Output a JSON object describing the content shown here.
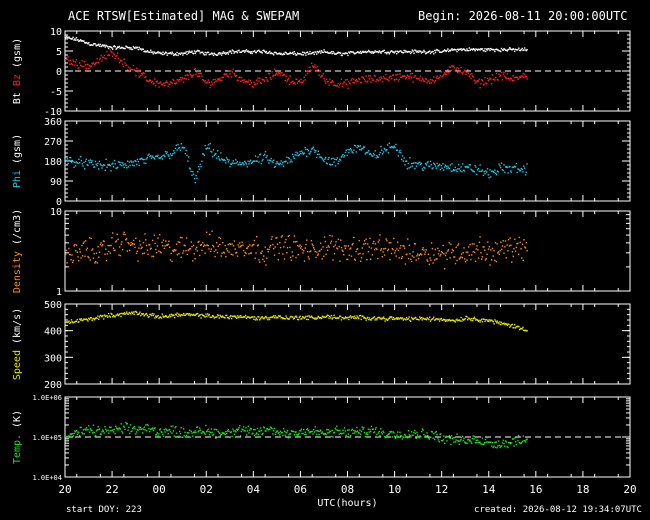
{
  "header": {
    "title": "ACE RTSW[Estimated] MAG & SWEPAM",
    "begin_label": "Begin: 2026-08-11 20:00:00UTC"
  },
  "footer": {
    "start_doy": "start DOY: 223",
    "created": "created: 2026-08-12 19:34:07UTC"
  },
  "colors": {
    "bt": "#ffffff",
    "bz": "#ff2020",
    "phi": "#1ec8e6",
    "density": "#ff8c1a",
    "speed": "#e6e600",
    "temp": "#20e020",
    "frame": "#ffffff"
  },
  "chart_data": [
    {
      "type": "scatter",
      "panel": "mag",
      "ylabel_parts": [
        "Bt",
        "Bz",
        "(gsm)"
      ],
      "yticks": [
        "10",
        "5",
        "0",
        "-5",
        "-10"
      ],
      "ylim": [
        -10,
        10
      ],
      "zero_line": 0,
      "series": [
        {
          "name": "Bt",
          "x": [
            0,
            0.5,
            1,
            1.5,
            2,
            2.5,
            3,
            3.5,
            4,
            4.5,
            5,
            5.5,
            6,
            6.5,
            7,
            7.5,
            8,
            8.5,
            9,
            9.5,
            10,
            10.5,
            11,
            11.5,
            12,
            12.5,
            13,
            13.5,
            14,
            14.5,
            15,
            15.5,
            16,
            16.5,
            17,
            17.5,
            18,
            18.5,
            19,
            19.5
          ],
          "values": [
            8.5,
            8,
            7,
            6.5,
            6,
            6,
            6,
            5,
            4.5,
            4.5,
            4.5,
            5,
            4.5,
            4.5,
            5,
            5,
            5,
            5,
            4.5,
            4.5,
            4.5,
            4.5,
            5,
            4.5,
            4.5,
            5,
            5,
            5,
            5,
            5,
            5,
            5,
            5,
            5.5,
            5.5,
            5.5,
            5.5,
            5.5,
            5.5,
            5.5
          ]
        },
        {
          "name": "Bz",
          "x": [
            0,
            0.5,
            1,
            1.5,
            2,
            2.5,
            3,
            3.5,
            4,
            4.5,
            5,
            5.5,
            6,
            6.5,
            7,
            7.5,
            8,
            8.5,
            9,
            9.5,
            10,
            10.5,
            11,
            11.5,
            12,
            12.5,
            13,
            13.5,
            14,
            14.5,
            15,
            15.5,
            16,
            16.5,
            17,
            17.5,
            18,
            18.5,
            19,
            19.5
          ],
          "values": [
            3,
            2,
            1.5,
            3,
            5,
            2,
            0,
            -2,
            -3,
            -3,
            -2,
            0,
            -3,
            -2,
            0,
            -2,
            -3,
            -2,
            0,
            -2,
            -3,
            2,
            -2,
            -3,
            -3,
            -2,
            -2,
            -1.5,
            -1.5,
            -1,
            -2,
            -2,
            -1,
            1,
            0,
            -3,
            -2,
            -1,
            -2,
            -1
          ]
        }
      ]
    },
    {
      "type": "scatter",
      "panel": "phi",
      "ylabel_parts": [
        "Phi",
        "(gsm)"
      ],
      "yticks": [
        "360",
        "270",
        "180",
        "90",
        "0"
      ],
      "ylim": [
        0,
        360
      ],
      "series": [
        {
          "name": "Phi",
          "x": [
            0,
            0.5,
            1,
            1.5,
            2,
            2.5,
            3,
            3.5,
            4,
            4.5,
            5,
            5.5,
            6,
            6.5,
            7,
            7.5,
            8,
            8.5,
            9,
            9.5,
            10,
            10.5,
            11,
            11.5,
            12,
            12.5,
            13,
            13.5,
            14,
            14.5,
            15,
            15.5,
            16,
            16.5,
            17,
            17.5,
            18,
            18.5,
            19,
            19.5
          ],
          "values": [
            185,
            180,
            168,
            165,
            160,
            165,
            175,
            190,
            200,
            220,
            250,
            90,
            250,
            200,
            170,
            175,
            180,
            200,
            160,
            185,
            220,
            240,
            190,
            170,
            230,
            250,
            200,
            230,
            250,
            175,
            165,
            160,
            160,
            155,
            150,
            145,
            125,
            150,
            150,
            145
          ]
        }
      ]
    },
    {
      "type": "scatter",
      "panel": "density",
      "ylabel_parts": [
        "Density",
        "(/cm3)"
      ],
      "yticks": [
        "10",
        "1"
      ],
      "ylim": [
        1,
        10
      ],
      "log_scale": true,
      "series": [
        {
          "name": "Density",
          "x": [
            0,
            0.5,
            1,
            1.5,
            2,
            2.5,
            3,
            3.5,
            4,
            4.5,
            5,
            5.5,
            6,
            6.5,
            7,
            7.5,
            8,
            8.5,
            9,
            9.5,
            10,
            10.5,
            11,
            11.5,
            12,
            12.5,
            13,
            13.5,
            14,
            14.5,
            15,
            15.5,
            16,
            16.5,
            17,
            17.5,
            18,
            18.5,
            19,
            19.5
          ],
          "values": [
            2.8,
            3.0,
            3.3,
            3.0,
            3.8,
            4.2,
            3.6,
            3.5,
            3.8,
            3.2,
            3.4,
            3.6,
            3.9,
            3.7,
            3.3,
            3.9,
            3.5,
            3.2,
            3.8,
            3.6,
            3.3,
            3.1,
            3.8,
            3.4,
            3.5,
            3.4,
            3.6,
            3.3,
            3.5,
            3.0,
            3.2,
            3.1,
            2.9,
            3.2,
            3.0,
            3.4,
            3.1,
            3.3,
            3.5,
            3.6
          ]
        }
      ]
    },
    {
      "type": "scatter",
      "panel": "speed",
      "ylabel_parts": [
        "Speed",
        "(km/s)"
      ],
      "yticks": [
        "500",
        "400",
        "300",
        "200"
      ],
      "ylim": [
        200,
        500
      ],
      "series": [
        {
          "name": "Speed",
          "x": [
            0,
            0.5,
            1,
            1.5,
            2,
            2.5,
            3,
            3.5,
            4,
            4.5,
            5,
            5.5,
            6,
            6.5,
            7,
            7.5,
            8,
            8.5,
            9,
            9.5,
            10,
            10.5,
            11,
            11.5,
            12,
            12.5,
            13,
            13.5,
            14,
            14.5,
            15,
            15.5,
            16,
            16.5,
            17,
            17.5,
            18,
            18.5,
            19,
            19.5
          ],
          "values": [
            430,
            440,
            445,
            455,
            460,
            465,
            470,
            460,
            455,
            460,
            462,
            460,
            458,
            455,
            455,
            455,
            450,
            450,
            455,
            450,
            452,
            450,
            455,
            452,
            450,
            452,
            450,
            448,
            448,
            446,
            448,
            446,
            445,
            440,
            450,
            445,
            440,
            430,
            420,
            408
          ]
        }
      ]
    },
    {
      "type": "scatter",
      "panel": "temp",
      "ylabel_parts": [
        "Temp.",
        "(K)"
      ],
      "yticks": [
        "1.0E+06",
        "1.0E+05",
        "1.0E+04"
      ],
      "ylim": [
        10000,
        1000000
      ],
      "log_scale": true,
      "reference_line": 100000,
      "series": [
        {
          "name": "Temp.",
          "x": [
            0,
            0.5,
            1,
            1.5,
            2,
            2.5,
            3,
            3.5,
            4,
            4.5,
            5,
            5.5,
            6,
            6.5,
            7,
            7.5,
            8,
            8.5,
            9,
            9.5,
            10,
            10.5,
            11,
            11.5,
            12,
            12.5,
            13,
            13.5,
            14,
            14.5,
            15,
            15.5,
            16,
            16.5,
            17,
            17.5,
            18,
            18.5,
            19,
            19.5
          ],
          "values": [
            110000,
            130000,
            150000,
            140000,
            150000,
            170000,
            160000,
            170000,
            140000,
            150000,
            130000,
            140000,
            150000,
            130000,
            140000,
            150000,
            130000,
            160000,
            140000,
            130000,
            150000,
            140000,
            130000,
            140000,
            130000,
            140000,
            150000,
            130000,
            120000,
            130000,
            125000,
            120000,
            100000,
            90000,
            80000,
            90000,
            75000,
            70000,
            80000,
            90000
          ]
        }
      ]
    }
  ],
  "xaxis": {
    "label": "UTC(hours)",
    "ticks": [
      "20",
      "22",
      "00",
      "02",
      "04",
      "06",
      "08",
      "10",
      "12",
      "14",
      "16",
      "18",
      "20"
    ],
    "range": [
      0,
      24
    ]
  }
}
